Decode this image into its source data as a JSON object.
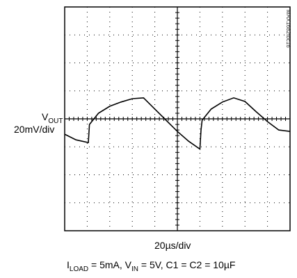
{
  "chart_data": {
    "type": "line",
    "title": "",
    "ylabel_main": "V",
    "ylabel_sub": "OUT",
    "yscale": "20mV/div",
    "xscale": "20µs/div",
    "divisions": {
      "x": 10,
      "y": 8
    },
    "grid": true,
    "grid_style": "dotted",
    "center_axes_ticked": true,
    "part_number": "MAX1682toc16",
    "caption": {
      "i_prefix": "I",
      "i_sub": "LOAD",
      "i_value": " = 5mA, V",
      "v_sub": "IN",
      "v_value": " = 5V, C1 = C2 = 10µF"
    },
    "series": [
      {
        "x_div": [
          0,
          0.5,
          1.05,
          1.1,
          1.5,
          2.0,
          2.5,
          3.0,
          3.5,
          4.0,
          4.5,
          5.0,
          5.5,
          6.0,
          6.05,
          6.1,
          6.5,
          7.0,
          7.5,
          8.0,
          8.5,
          9.0,
          9.5,
          10.0
        ],
        "y_div": [
          -0.55,
          -0.75,
          -0.85,
          -0.2,
          0.2,
          0.45,
          0.6,
          0.72,
          0.75,
          0.35,
          -0.05,
          -0.45,
          -0.8,
          -1.08,
          -0.4,
          -0.05,
          0.35,
          0.6,
          0.75,
          0.62,
          0.25,
          -0.1,
          -0.4,
          -0.45
        ]
      }
    ],
    "colors": {
      "trace": "#000000",
      "frame": "#000000",
      "grid": "#000000"
    }
  }
}
